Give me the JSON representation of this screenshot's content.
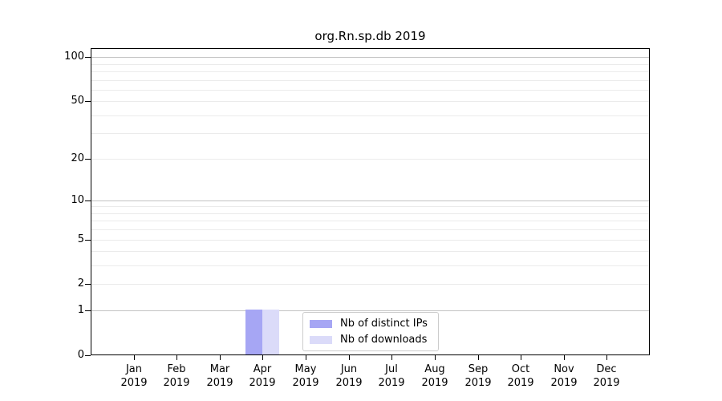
{
  "chart_data": {
    "type": "bar",
    "title": "org.Rn.sp.db 2019",
    "x": {
      "categories": [
        "Jan",
        "Feb",
        "Mar",
        "Apr",
        "May",
        "Jun",
        "Jul",
        "Aug",
        "Sep",
        "Oct",
        "Nov",
        "Dec"
      ],
      "year": "2019"
    },
    "y": {
      "scale": "log1p",
      "min": 0,
      "max": 115,
      "ticks": [
        0,
        1,
        2,
        5,
        10,
        20,
        50,
        100
      ],
      "major_gridlines": [
        1,
        10,
        100
      ],
      "minor_gridlines": [
        2,
        3,
        4,
        5,
        6,
        7,
        8,
        9,
        20,
        30,
        40,
        50,
        60,
        70,
        80,
        90
      ]
    },
    "series": [
      {
        "name": "Nb of distinct IPs",
        "color": "#a6a6f4",
        "values": [
          0,
          0,
          0,
          1,
          0,
          0,
          0,
          0,
          0,
          0,
          0,
          0
        ]
      },
      {
        "name": "Nb of downloads",
        "color": "#dbdbf9",
        "values": [
          0,
          0,
          0,
          1,
          0,
          0,
          0,
          0,
          0,
          0,
          0,
          0
        ]
      }
    ],
    "legend": {
      "position": "lower center",
      "items": [
        {
          "label": "Nb of distinct IPs",
          "color": "#a6a6f4"
        },
        {
          "label": "Nb of downloads",
          "color": "#dbdbf9"
        }
      ]
    },
    "grid": true
  },
  "colors": {
    "background": "#ffffff",
    "spine": "#000000",
    "text": "#000000",
    "major_grid": "#c3c3c3",
    "minor_grid": "#ebebeb",
    "legend_border": "#cccccc"
  }
}
